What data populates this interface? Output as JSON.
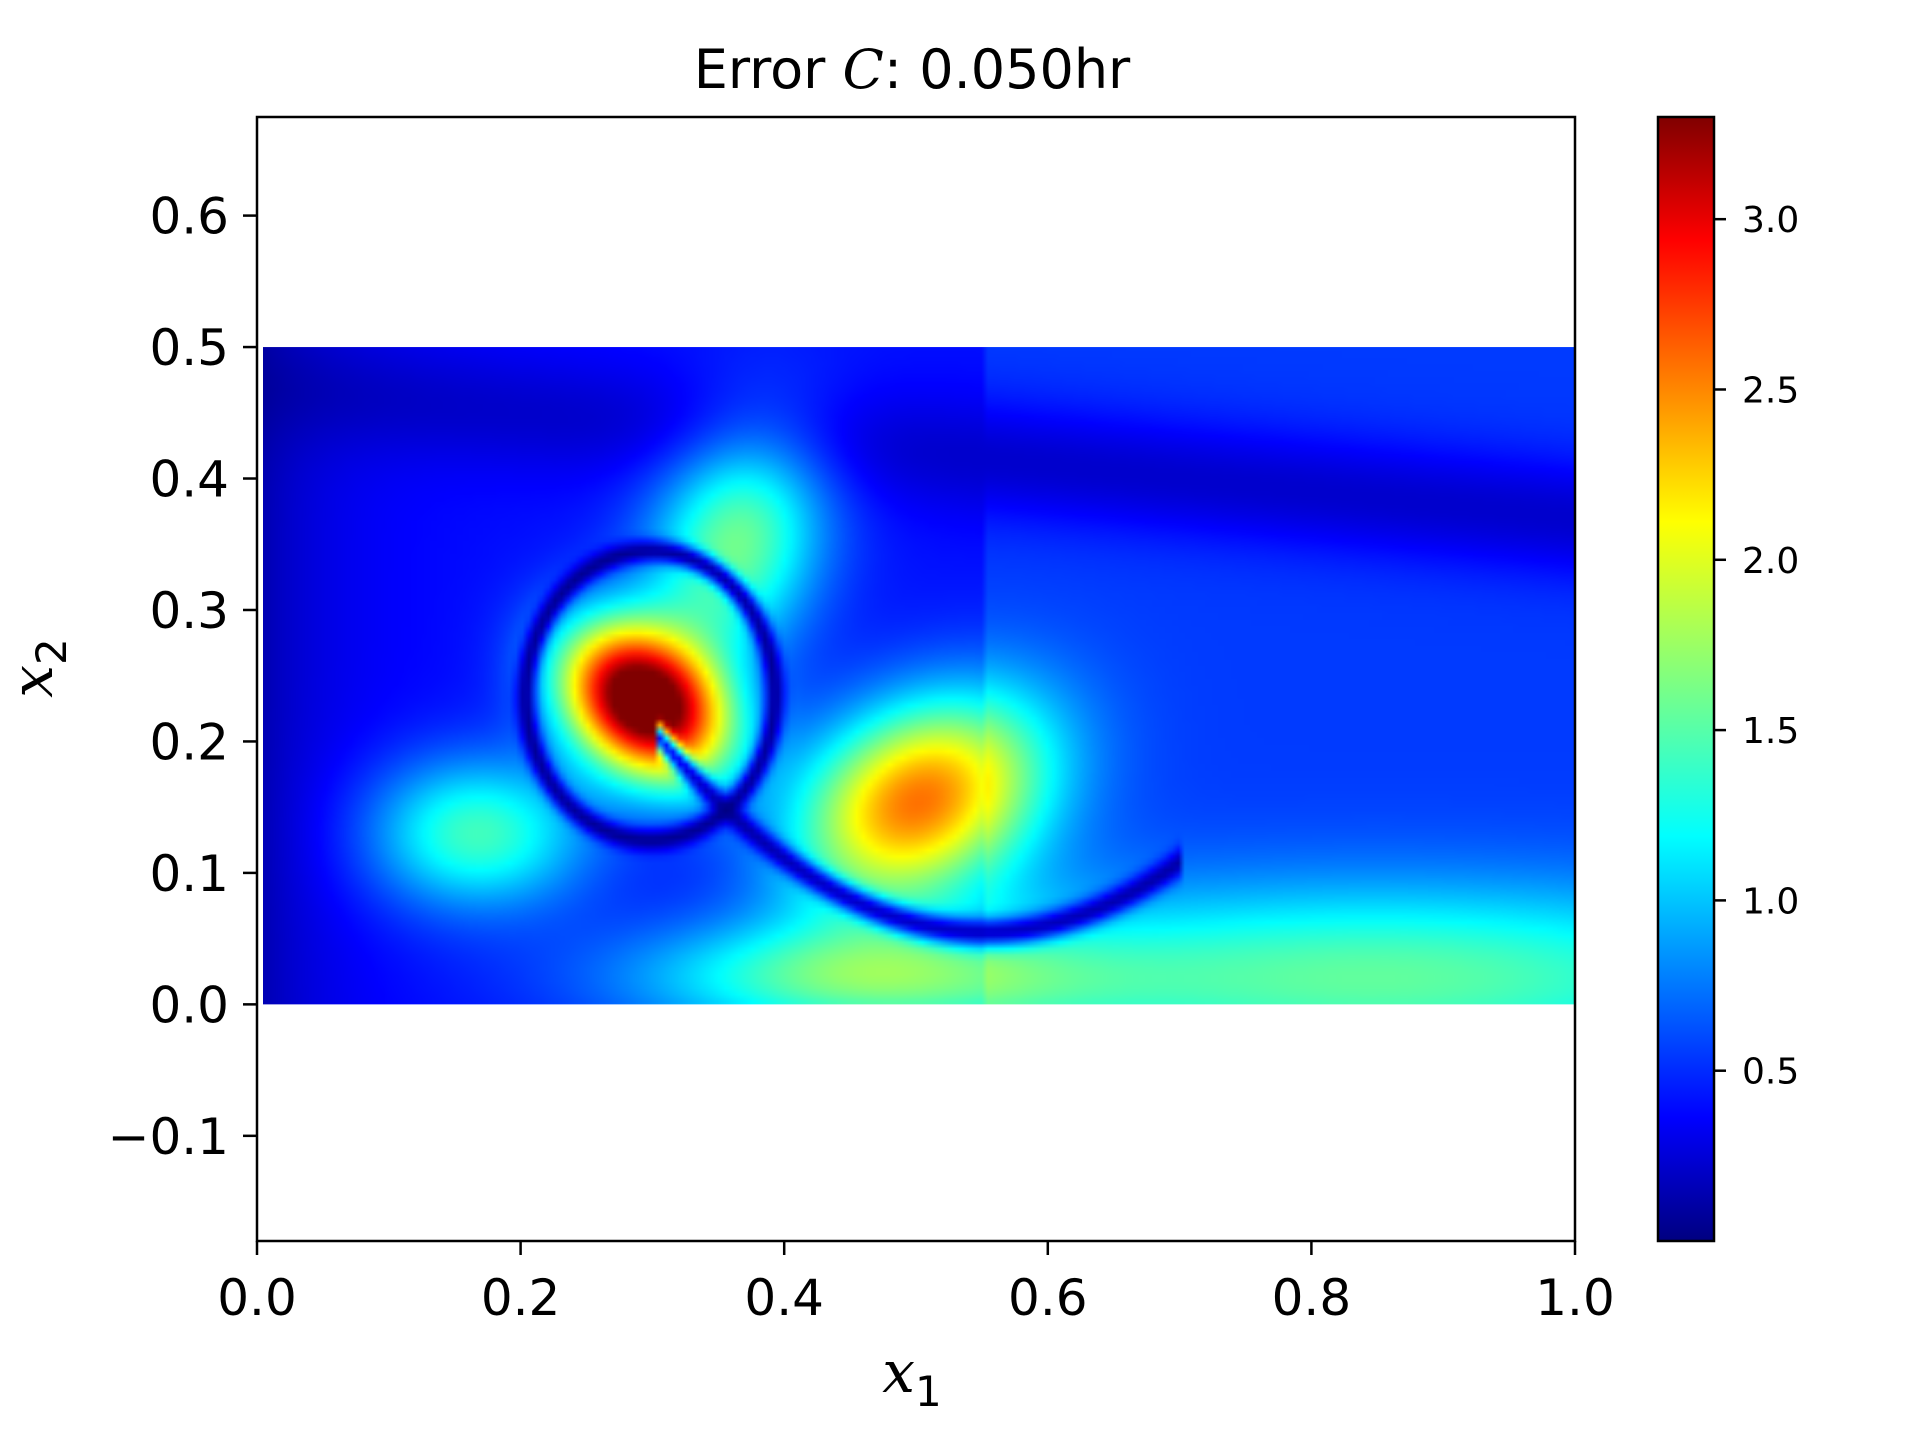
{
  "chart_data": {
    "type": "heatmap",
    "title_prefix": "Error ",
    "title_var": "C",
    "title_suffix": ": 0.050hr",
    "xlabel": "x",
    "xlabel_sub": "1",
    "ylabel": "x",
    "ylabel_sub": "2",
    "xlim": [
      0.0,
      1.0
    ],
    "ylim": [
      -0.18,
      0.675
    ],
    "data_extent": {
      "x": [
        0.0,
        1.0
      ],
      "y": [
        0.0,
        0.5
      ]
    },
    "x_ticks": [
      {
        "value": 0.0,
        "label": "0.0"
      },
      {
        "value": 0.2,
        "label": "0.2"
      },
      {
        "value": 0.4,
        "label": "0.4"
      },
      {
        "value": 0.6,
        "label": "0.6"
      },
      {
        "value": 0.8,
        "label": "0.8"
      },
      {
        "value": 1.0,
        "label": "1.0"
      }
    ],
    "y_ticks": [
      {
        "value": -0.1,
        "label": "−0.1"
      },
      {
        "value": 0.0,
        "label": "0.0"
      },
      {
        "value": 0.1,
        "label": "0.1"
      },
      {
        "value": 0.2,
        "label": "0.2"
      },
      {
        "value": 0.3,
        "label": "0.3"
      },
      {
        "value": 0.4,
        "label": "0.4"
      },
      {
        "value": 0.5,
        "label": "0.5"
      },
      {
        "value": 0.6,
        "label": "0.6"
      }
    ],
    "colorbar": {
      "colormap": "jet",
      "range": [
        0.0,
        3.3
      ],
      "ticks": [
        {
          "value": 0.5,
          "label": "0.5"
        },
        {
          "value": 1.0,
          "label": "1.0"
        },
        {
          "value": 1.5,
          "label": "1.5"
        },
        {
          "value": 2.0,
          "label": "2.0"
        },
        {
          "value": 2.5,
          "label": "2.5"
        },
        {
          "value": 3.0,
          "label": "3.0"
        }
      ]
    },
    "grid": false,
    "features": [
      {
        "kind": "peak",
        "x": 0.29,
        "y": 0.23,
        "value": 3.25
      },
      {
        "kind": "peak",
        "x": 0.5,
        "y": 0.15,
        "value": 2.1
      },
      {
        "kind": "peak",
        "x": 0.36,
        "y": 0.35,
        "value": 1.2
      },
      {
        "kind": "peak",
        "x": 0.16,
        "y": 0.13,
        "value": 1.1
      },
      {
        "kind": "peak",
        "x": 0.85,
        "y": 0.03,
        "value": 1.05
      },
      {
        "kind": "background",
        "value": 0.35
      }
    ]
  }
}
